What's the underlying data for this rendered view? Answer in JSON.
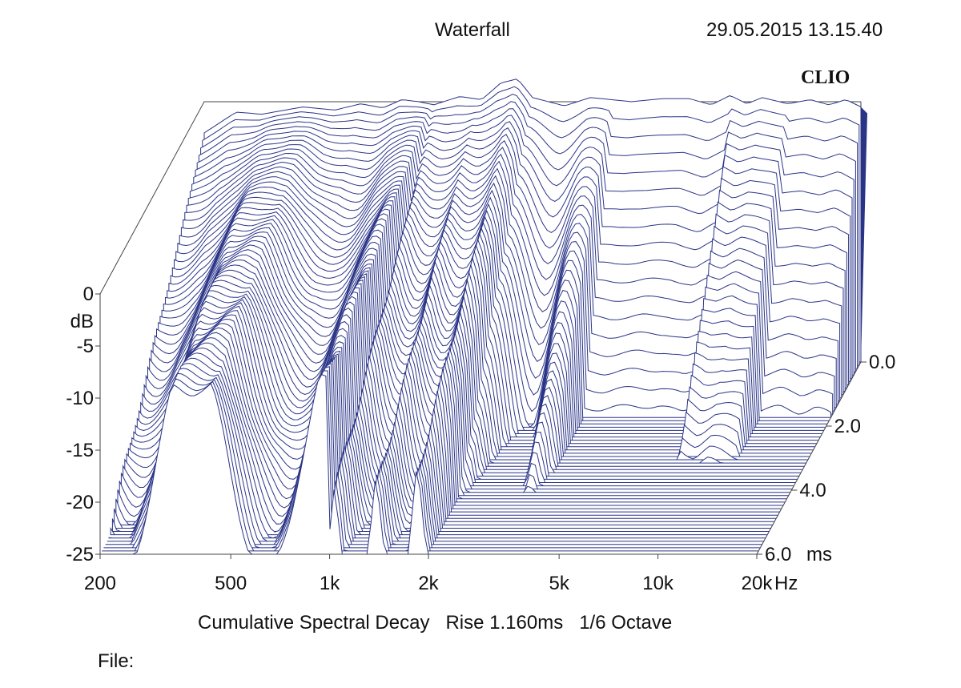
{
  "header": {
    "title": "Waterfall",
    "timestamp": "29.05.2015 13.15.40",
    "brand": "CLIO"
  },
  "footer": {
    "subtitle": "Cumulative Spectral Decay   Rise 1.160ms   1/6 Octave",
    "file_label": "File:"
  },
  "colors": {
    "trace": "#2a3487",
    "fill": "#2a3487",
    "axis": "#444444"
  },
  "chart_data": {
    "type": "waterfall",
    "x_scale": "log",
    "xlim": [
      200,
      20000
    ],
    "x_ticks": [
      {
        "value": 200,
        "label": "200"
      },
      {
        "value": 500,
        "label": "500"
      },
      {
        "value": 1000,
        "label": "1k"
      },
      {
        "value": 2000,
        "label": "2k"
      },
      {
        "value": 5000,
        "label": "5k"
      },
      {
        "value": 10000,
        "label": "10k"
      },
      {
        "value": 20000,
        "label": "20k"
      }
    ],
    "x_unit": "Hz",
    "ylim": [
      -25,
      0
    ],
    "y_ticks": [
      {
        "value": 0,
        "label": "0"
      },
      {
        "value": -5,
        "label": "-5"
      },
      {
        "value": -10,
        "label": "-10"
      },
      {
        "value": -15,
        "label": "-15"
      },
      {
        "value": -20,
        "label": "-20"
      },
      {
        "value": -25,
        "label": "-25"
      }
    ],
    "y_unit": "dB",
    "zlim": [
      0,
      6
    ],
    "z_ticks": [
      {
        "value": 0,
        "label": "0.0"
      },
      {
        "value": 2,
        "label": "2.0"
      },
      {
        "value": 4,
        "label": "4.0"
      },
      {
        "value": 6,
        "label": "6.0"
      }
    ],
    "z_unit": "ms",
    "slice_count": 60,
    "initial_response": {
      "freq_hz": [
        200,
        250,
        300,
        400,
        500,
        600,
        700,
        800,
        900,
        1000,
        1200,
        1400,
        1600,
        1800,
        2000,
        2500,
        3000,
        4000,
        5000,
        6000,
        7000,
        8000,
        9000,
        10000,
        12000,
        14000,
        16000,
        18000,
        20000
      ],
      "db": [
        -3.0,
        -1.0,
        -1.2,
        -0.5,
        -0.8,
        -0.2,
        -0.6,
        0.2,
        0.0,
        -0.3,
        0.5,
        0.2,
        1.8,
        2.2,
        0.4,
        -0.4,
        0.4,
        0.0,
        0.3,
        0.3,
        -0.3,
        0.6,
        -0.2,
        0.4,
        -0.2,
        0.2,
        -0.3,
        0.2,
        -0.5
      ]
    }
  }
}
